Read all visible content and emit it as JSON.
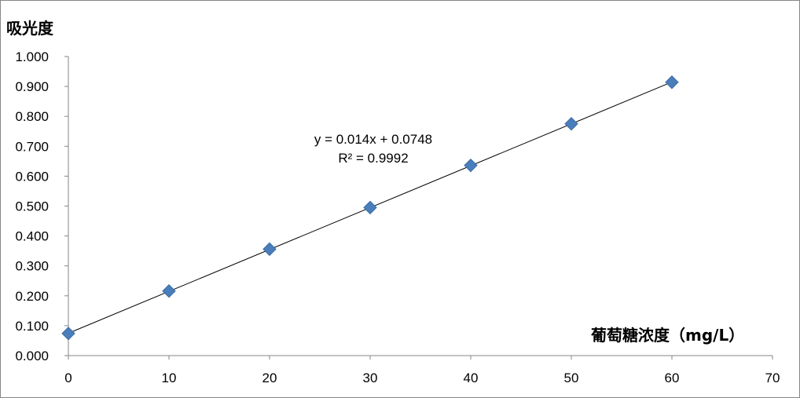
{
  "chart_data": {
    "type": "scatter",
    "title": "",
    "ylabel": "吸光度",
    "xlabel": "葡萄糖浓度（mg/L）",
    "xlim": [
      0,
      70
    ],
    "ylim": [
      0,
      1.0
    ],
    "x_ticks": [
      "0",
      "10",
      "20",
      "30",
      "40",
      "50",
      "60",
      "70"
    ],
    "y_ticks": [
      "0.000",
      "0.100",
      "0.200",
      "0.300",
      "0.400",
      "0.500",
      "0.600",
      "0.700",
      "0.800",
      "0.900",
      "1.000"
    ],
    "grid": false,
    "legend": "none",
    "series": [
      {
        "marker": "diamond",
        "color": "#4a7ebb",
        "points": [
          {
            "x": 0,
            "y": 0.074
          },
          {
            "x": 10,
            "y": 0.216
          },
          {
            "x": 20,
            "y": 0.356
          },
          {
            "x": 30,
            "y": 0.495
          },
          {
            "x": 40,
            "y": 0.636
          },
          {
            "x": 50,
            "y": 0.775
          },
          {
            "x": 60,
            "y": 0.914
          }
        ]
      }
    ],
    "trendline": {
      "type": "linear",
      "slope": 0.014,
      "intercept": 0.0748,
      "x_range": [
        0,
        60
      ],
      "color": "#000000",
      "equation_text": "y = 0.014x + 0.0748",
      "r2_text": "R² = 0.9992"
    }
  }
}
